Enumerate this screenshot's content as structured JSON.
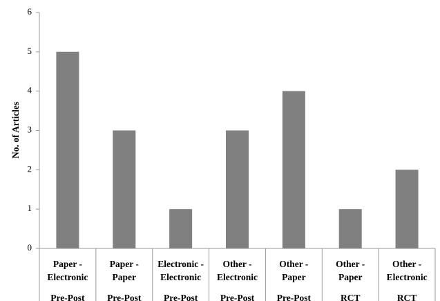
{
  "chart_data": {
    "type": "bar",
    "categories": [
      {
        "line1": "Paper -",
        "line2": "Electronic",
        "group": "Pre-Post"
      },
      {
        "line1": "Paper -",
        "line2": "Paper",
        "group": "Pre-Post"
      },
      {
        "line1": "Electronic -",
        "line2": "Electronic",
        "group": "Pre-Post"
      },
      {
        "line1": "Other -",
        "line2": "Electronic",
        "group": "Pre-Post"
      },
      {
        "line1": "Other -",
        "line2": "Paper",
        "group": "Pre-Post"
      },
      {
        "line1": "Other -",
        "line2": "Paper",
        "group": "RCT"
      },
      {
        "line1": "Other -",
        "line2": "Electronic",
        "group": "RCT"
      }
    ],
    "values": [
      5,
      3,
      1,
      3,
      4,
      1,
      2
    ],
    "ylabel": "No. of Articles",
    "ylim": [
      0,
      6
    ],
    "yticks": [
      0,
      1,
      2,
      3,
      4,
      5,
      6
    ],
    "bar_color": "#808080",
    "grid": false
  }
}
